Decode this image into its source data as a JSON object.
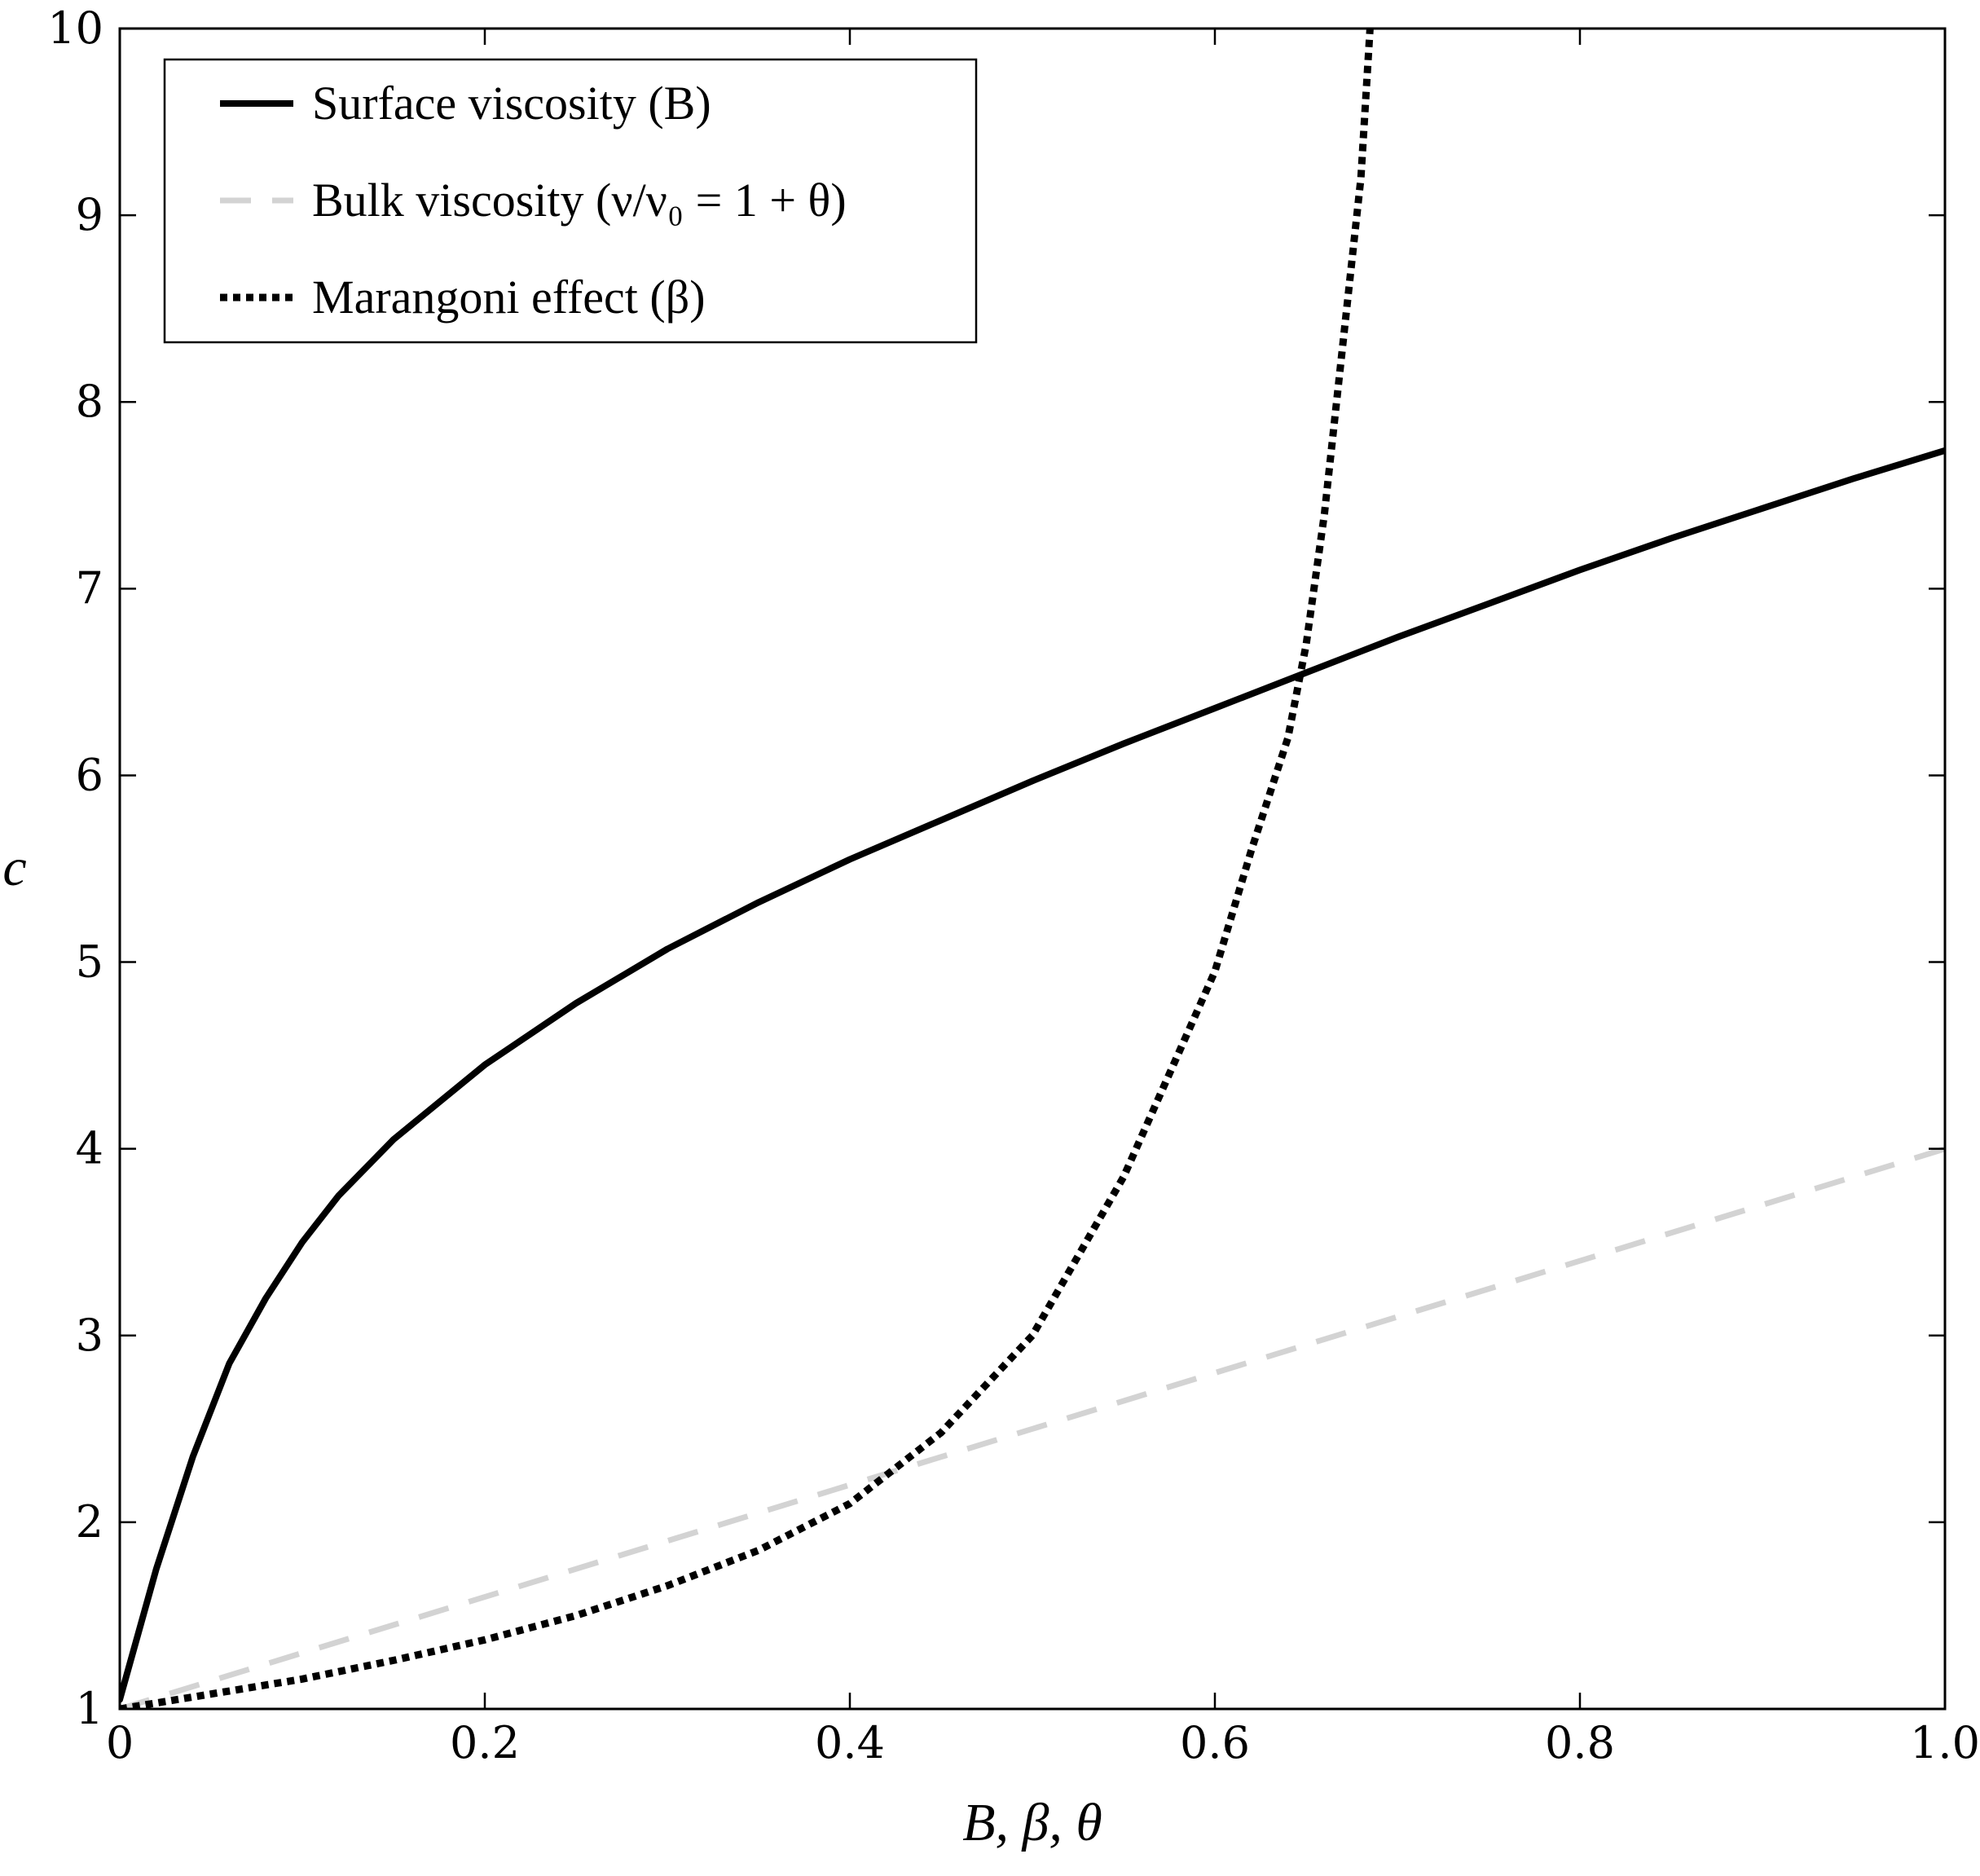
{
  "chart_data": {
    "type": "line",
    "xlabel": "B, β, θ",
    "ylabel": "c",
    "xlim": [
      0,
      1.0
    ],
    "ylim": [
      1,
      10
    ],
    "xticks": [
      0,
      0.2,
      0.4,
      0.6,
      0.8,
      1.0
    ],
    "xtick_labels": [
      "0",
      "0.2",
      "0.4",
      "0.6",
      "0.8",
      "1.0"
    ],
    "yticks": [
      1,
      2,
      3,
      4,
      5,
      6,
      7,
      8,
      9,
      10
    ],
    "ytick_labels": [
      "1",
      "2",
      "3",
      "4",
      "5",
      "6",
      "7",
      "8",
      "9",
      "10"
    ],
    "grid": false,
    "legend_position": "top-left",
    "series": [
      {
        "name": "Surface viscosity (B)",
        "style": "solid",
        "color": "#000000",
        "x": [
          0,
          0.02,
          0.04,
          0.06,
          0.08,
          0.1,
          0.12,
          0.15,
          0.2,
          0.25,
          0.3,
          0.35,
          0.4,
          0.45,
          0.5,
          0.55,
          0.6,
          0.65,
          0.7,
          0.75,
          0.8,
          0.85,
          0.9,
          0.95,
          1.0
        ],
        "y": [
          1.05,
          1.75,
          2.35,
          2.85,
          3.2,
          3.5,
          3.75,
          4.05,
          4.45,
          4.78,
          5.07,
          5.32,
          5.55,
          5.76,
          5.97,
          6.17,
          6.36,
          6.55,
          6.74,
          6.92,
          7.1,
          7.27,
          7.43,
          7.59,
          7.74
        ]
      },
      {
        "name": "Bulk viscosity (ν/ν₀ = 1 + θ)",
        "style": "dashed",
        "color": "#d3d3d3",
        "x": [
          0,
          1.0
        ],
        "y": [
          1,
          4
        ]
      },
      {
        "name": "Marangoni effect (β)",
        "style": "dotted",
        "color": "#000000",
        "x": [
          0,
          0.05,
          0.1,
          0.15,
          0.2,
          0.25,
          0.3,
          0.35,
          0.4,
          0.45,
          0.5,
          0.55,
          0.6,
          0.62,
          0.64,
          0.65,
          0.66,
          0.67,
          0.68,
          0.685
        ],
        "y": [
          1.0,
          1.08,
          1.16,
          1.26,
          1.37,
          1.5,
          1.66,
          1.85,
          2.1,
          2.48,
          3.0,
          3.85,
          4.95,
          5.6,
          6.2,
          6.7,
          7.4,
          8.3,
          9.2,
          10.0
        ]
      }
    ]
  }
}
